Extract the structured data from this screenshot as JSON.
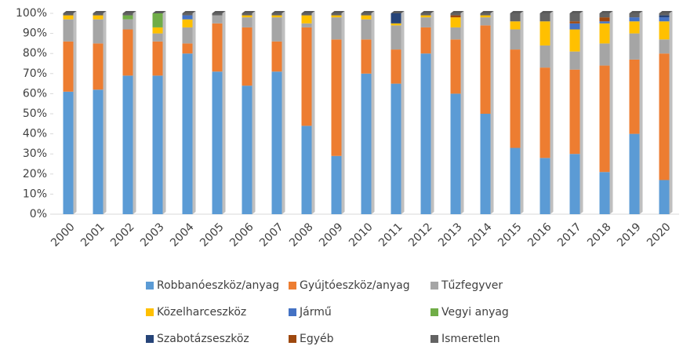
{
  "chart_data": {
    "type": "stacked_bar",
    "categories": [
      "2000",
      "2001",
      "2002",
      "2003",
      "2004",
      "2005",
      "2006",
      "2007",
      "2008",
      "2009",
      "2010",
      "2011",
      "2012",
      "2013",
      "2014",
      "2015",
      "2016",
      "2017",
      "2018",
      "2019",
      "2020"
    ],
    "series": [
      {
        "name": "Robbanóeszköz/anyag",
        "color": "#5b9bd5",
        "values": [
          61,
          62,
          69,
          69,
          80,
          71,
          64,
          71,
          44,
          29,
          70,
          65,
          80,
          60,
          50,
          33,
          28,
          30,
          21,
          40,
          17
        ]
      },
      {
        "name": "Gyújtóeszköz/anyag",
        "color": "#ed7d31",
        "values": [
          25,
          23,
          23,
          17,
          5,
          24,
          29,
          15,
          49,
          58,
          17,
          17,
          13,
          27,
          44,
          49,
          45,
          42,
          53,
          37,
          63
        ]
      },
      {
        "name": "Tűzfegyver",
        "color": "#a5a5a5",
        "values": [
          11,
          12,
          5,
          4,
          8,
          4,
          5,
          12,
          2,
          11,
          10,
          12,
          5,
          6,
          4,
          10,
          11,
          9,
          11,
          13,
          7
        ]
      },
      {
        "name": "Közelharceszköz",
        "color": "#ffc000",
        "values": [
          2,
          2,
          0,
          3,
          4,
          0,
          1,
          1,
          4,
          1,
          2,
          1,
          1,
          5,
          1,
          4,
          12,
          11,
          10,
          6,
          9
        ]
      },
      {
        "name": "Jármű",
        "color": "#4472c4",
        "values": [
          0,
          0,
          0,
          0,
          2,
          0,
          0,
          0,
          0,
          0,
          0,
          0,
          0,
          0,
          0,
          0,
          0,
          3,
          1,
          2,
          2
        ]
      },
      {
        "name": "Vegyi anyag",
        "color": "#70ad47",
        "values": [
          0,
          0,
          2,
          7,
          0,
          0,
          0,
          0,
          0,
          0,
          0,
          0,
          0,
          0,
          0,
          0,
          0,
          0,
          0,
          0,
          0
        ]
      },
      {
        "name": "Szabotázseszköz",
        "color": "#264478",
        "values": [
          0,
          0,
          0,
          0,
          0,
          0,
          0,
          0,
          0,
          0,
          0,
          5,
          0,
          0,
          0,
          0,
          0,
          0,
          0,
          0,
          1
        ]
      },
      {
        "name": "Egyéb",
        "color": "#9e480e",
        "values": [
          0,
          0,
          0,
          0,
          0,
          0,
          0,
          0,
          0,
          0,
          0,
          0,
          0,
          1,
          0,
          0,
          0,
          1,
          2,
          0,
          0
        ]
      },
      {
        "name": "Ismeretlen",
        "color": "#636363",
        "values": [
          1,
          1,
          1,
          0,
          1,
          1,
          1,
          1,
          1,
          1,
          1,
          0,
          1,
          1,
          1,
          4,
          4,
          4,
          2,
          2,
          1
        ]
      }
    ],
    "ylim": [
      0,
      100
    ],
    "yticks": [
      {
        "value": 0,
        "label": "0%"
      },
      {
        "value": 10,
        "label": "10%"
      },
      {
        "value": 20,
        "label": "20%"
      },
      {
        "value": 30,
        "label": "30%"
      },
      {
        "value": 40,
        "label": "40%"
      },
      {
        "value": 50,
        "label": "50%"
      },
      {
        "value": 60,
        "label": "60%"
      },
      {
        "value": 70,
        "label": "70%"
      },
      {
        "value": 80,
        "label": "80%"
      },
      {
        "value": 90,
        "label": "90%"
      },
      {
        "value": 100,
        "label": "100%"
      }
    ]
  }
}
